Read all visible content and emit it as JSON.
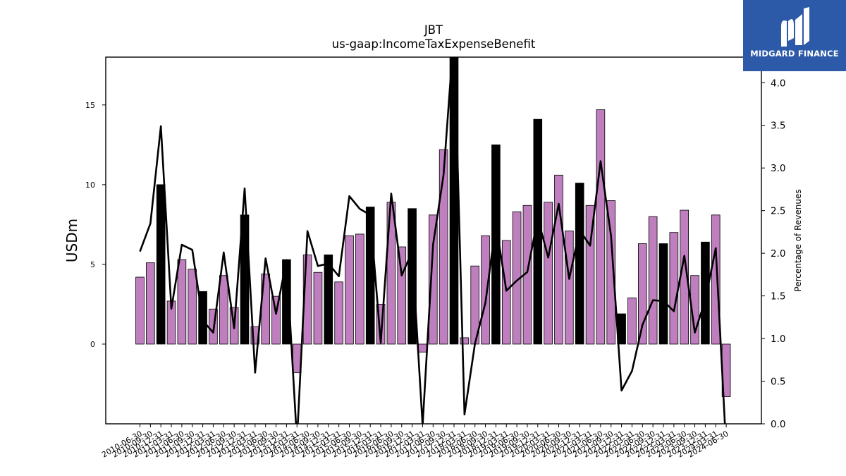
{
  "chart_data": {
    "type": "bar",
    "title": "JBT",
    "subtitle": "us-gaap:IncomeTaxExpenseBenefit",
    "ylabel": "USDm",
    "y2label": "Percentage of Revenues",
    "ylim": [
      -5,
      18
    ],
    "y2lim": [
      0,
      4.3
    ],
    "yticks": [
      0,
      5,
      10,
      15
    ],
    "y2ticks": [
      0.0,
      0.5,
      1.0,
      1.5,
      2.0,
      2.5,
      3.0,
      3.5,
      4.0
    ],
    "categories": [
      "2010-06-30",
      "2010-09-30",
      "2010-12-31",
      "2011-03-31",
      "2011-06-30",
      "2011-09-30",
      "2011-12-31",
      "2012-03-31",
      "2012-06-30",
      "2012-09-30",
      "2012-12-31",
      "2013-03-31",
      "2013-06-30",
      "2013-09-30",
      "2013-12-31",
      "2014-03-31",
      "2014-06-30",
      "2014-09-30",
      "2014-12-31",
      "2015-03-31",
      "2015-06-30",
      "2015-09-30",
      "2015-12-31",
      "2016-03-31",
      "2016-06-30",
      "2016-09-30",
      "2016-12-31",
      "2017-03-31",
      "2017-06-30",
      "2017-09-30",
      "2017-12-31",
      "2018-03-31",
      "2018-06-30",
      "2018-09-30",
      "2018-12-31",
      "2019-03-31",
      "2019-06-30",
      "2019-09-30",
      "2019-12-31",
      "2020-03-31",
      "2020-06-30",
      "2020-09-30",
      "2020-12-31",
      "2021-03-31",
      "2021-06-30",
      "2021-09-30",
      "2021-12-31",
      "2022-03-31",
      "2022-06-30",
      "2022-09-30",
      "2022-12-31",
      "2023-03-31",
      "2023-06-30",
      "2023-09-30",
      "2023-12-31",
      "2024-03-31",
      "2024-06-30"
    ],
    "series": [
      {
        "type": "bar",
        "values": [
          4.2,
          5.1,
          10.0,
          2.7,
          5.3,
          4.7,
          3.3,
          2.2,
          4.3,
          2.3,
          8.1,
          1.1,
          4.4,
          3.0,
          5.3,
          -1.8,
          5.6,
          4.5,
          5.6,
          3.9,
          6.8,
          6.9,
          8.6,
          2.5,
          8.9,
          6.1,
          8.5,
          -0.5,
          8.1,
          12.2,
          18.0,
          0.4,
          4.9,
          6.8,
          12.5,
          6.5,
          8.3,
          8.7,
          14.1,
          8.9,
          10.6,
          7.1,
          10.1,
          8.7,
          14.7,
          9.0,
          1.9,
          2.9,
          6.3,
          8.0,
          6.3,
          7.0,
          8.4,
          4.3,
          6.4,
          8.1,
          -3.3
        ],
        "quarter_end_dec": [
          false,
          false,
          true,
          false,
          false,
          false,
          true,
          false,
          false,
          false,
          true,
          false,
          false,
          false,
          true,
          false,
          false,
          false,
          true,
          false,
          false,
          false,
          true,
          false,
          false,
          false,
          true,
          false,
          false,
          false,
          true,
          false,
          false,
          false,
          true,
          false,
          false,
          false,
          true,
          false,
          false,
          false,
          true,
          false,
          false,
          false,
          true,
          false,
          false,
          false,
          true,
          false,
          false,
          false,
          true,
          false,
          false
        ]
      },
      {
        "type": "line",
        "axis": "right",
        "values": [
          2.02,
          2.35,
          3.49,
          1.35,
          2.1,
          2.04,
          1.21,
          1.07,
          2.01,
          1.12,
          2.76,
          0.6,
          1.94,
          1.29,
          1.92,
          -0.2,
          2.26,
          1.85,
          1.88,
          1.73,
          2.67,
          2.52,
          2.45,
          0.95,
          2.7,
          1.74,
          2.02,
          -0.02,
          2.1,
          2.92,
          4.6,
          0.11,
          0.94,
          1.42,
          2.35,
          1.56,
          1.68,
          1.78,
          2.41,
          1.95,
          2.58,
          1.7,
          2.27,
          2.09,
          3.08,
          2.2,
          0.39,
          0.62,
          1.16,
          1.45,
          1.44,
          1.32,
          1.97,
          1.07,
          1.45,
          2.06,
          -0.3
        ]
      }
    ],
    "colors": {
      "bar": "#bf7fbf",
      "bar_dec": "#000000",
      "line": "#000000"
    }
  },
  "logo": {
    "text": "MIDGARD FINANCE",
    "icon": "midgard-logo-icon"
  }
}
